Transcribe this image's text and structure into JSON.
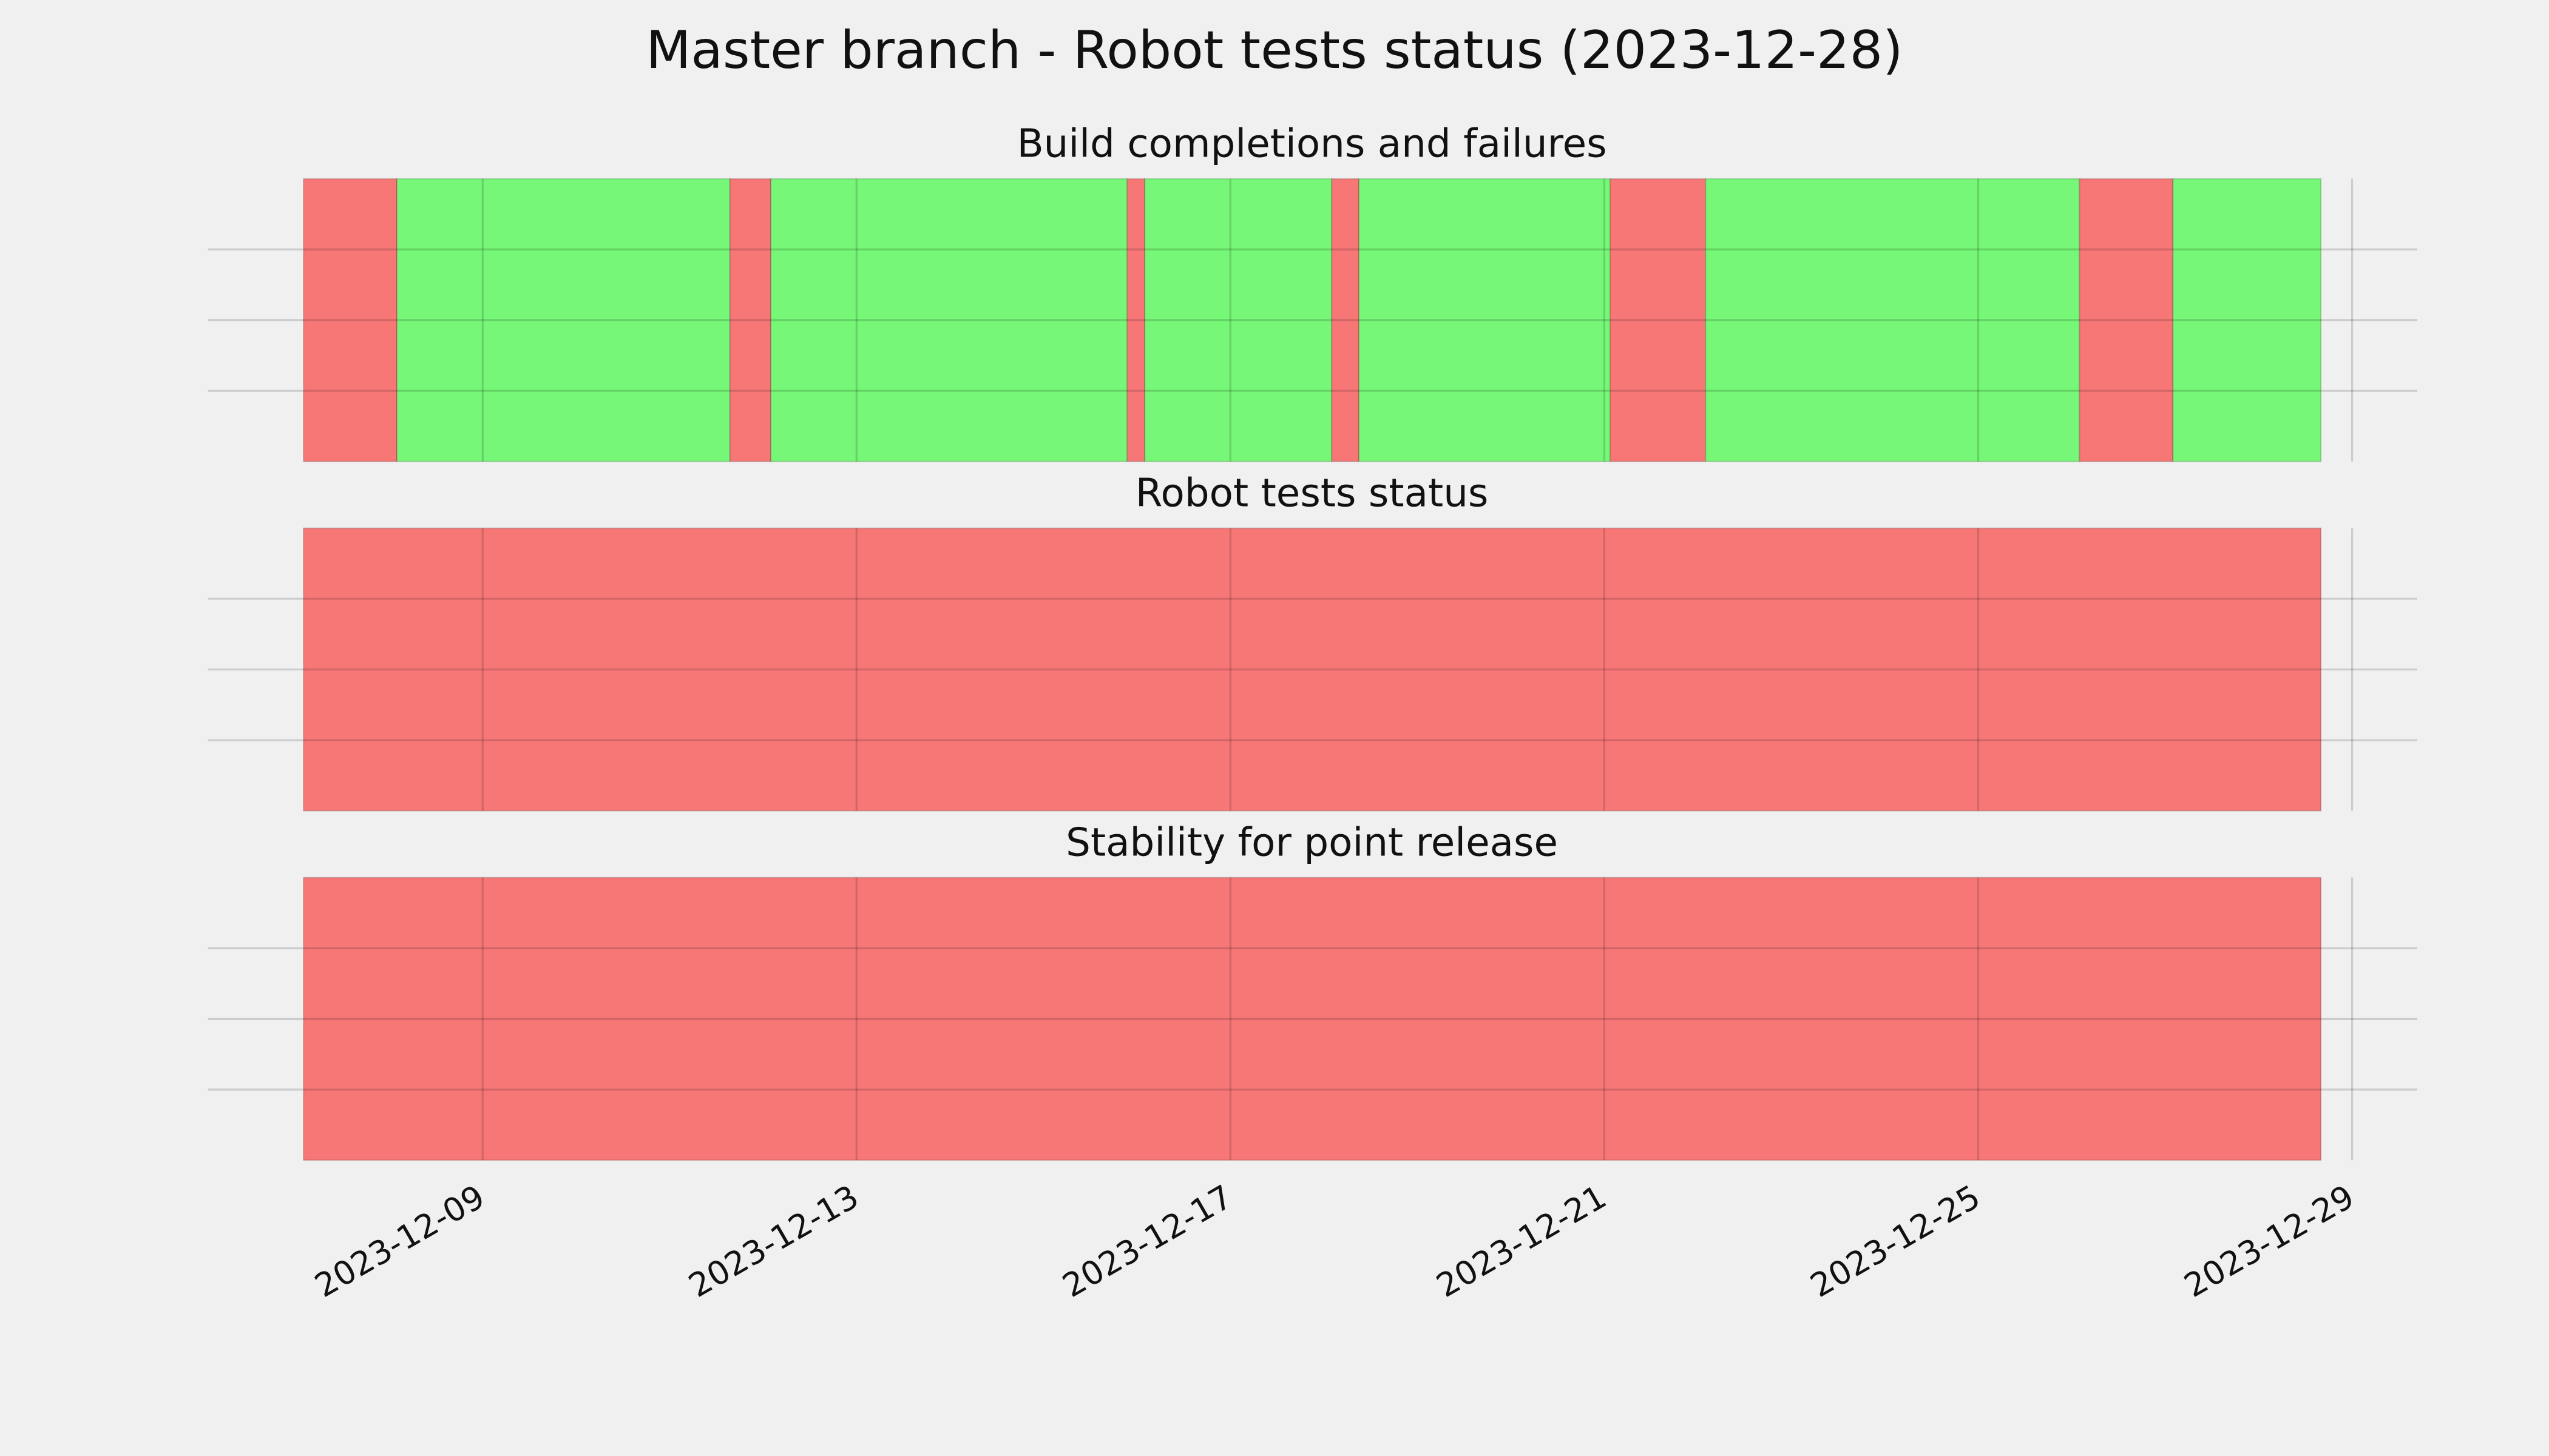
{
  "title": "Master branch - Robot tests status (2023-12-28)",
  "chart_data": [
    {
      "type": "timeline",
      "title": "Build completions and failures",
      "xlim": [
        "2023-12-06 01:30",
        "2023-12-29 16:45"
      ],
      "xticks": [
        "2023-12-09",
        "2023-12-13",
        "2023-12-17",
        "2023-12-21",
        "2023-12-25",
        "2023-12-29"
      ],
      "ylim": [
        0,
        1
      ],
      "yticks": [
        0.25,
        0.5,
        0.75
      ],
      "grid": true,
      "spans": [
        {
          "start": "2023-12-07 02:00",
          "end": "2023-12-08 02:00",
          "color": "#f77777"
        },
        {
          "start": "2023-12-08 02:00",
          "end": "2023-12-11 15:30",
          "color": "#77f777"
        },
        {
          "start": "2023-12-11 15:30",
          "end": "2023-12-12 02:00",
          "color": "#f77777"
        },
        {
          "start": "2023-12-12 02:00",
          "end": "2023-12-15 21:30",
          "color": "#77f777"
        },
        {
          "start": "2023-12-15 21:30",
          "end": "2023-12-16 02:00",
          "color": "#f77777"
        },
        {
          "start": "2023-12-16 02:00",
          "end": "2023-12-18 02:00",
          "color": "#77f777"
        },
        {
          "start": "2023-12-18 02:00",
          "end": "2023-12-18 09:00",
          "color": "#f77777"
        },
        {
          "start": "2023-12-18 09:00",
          "end": "2023-12-21 01:30",
          "color": "#77f777"
        },
        {
          "start": "2023-12-21 01:30",
          "end": "2023-12-22 02:00",
          "color": "#f77777"
        },
        {
          "start": "2023-12-22 02:00",
          "end": "2023-12-26 02:00",
          "color": "#77f777"
        },
        {
          "start": "2023-12-26 02:00",
          "end": "2023-12-27 02:00",
          "color": "#f77777"
        },
        {
          "start": "2023-12-27 02:00",
          "end": "2023-12-28 16:00",
          "color": "#77f777"
        }
      ]
    },
    {
      "type": "timeline",
      "title": "Robot tests status",
      "xlim": [
        "2023-12-06 01:30",
        "2023-12-29 16:45"
      ],
      "xticks": [
        "2023-12-09",
        "2023-12-13",
        "2023-12-17",
        "2023-12-21",
        "2023-12-25",
        "2023-12-29"
      ],
      "ylim": [
        0,
        1
      ],
      "yticks": [
        0.25,
        0.5,
        0.75
      ],
      "grid": true,
      "spans": [
        {
          "start": "2023-12-07 02:00",
          "end": "2023-12-28 16:00",
          "color": "#f77777"
        }
      ]
    },
    {
      "type": "timeline",
      "title": "Stability for point release",
      "xlim": [
        "2023-12-06 01:30",
        "2023-12-29 16:45"
      ],
      "xticks": [
        "2023-12-09",
        "2023-12-13",
        "2023-12-17",
        "2023-12-21",
        "2023-12-25",
        "2023-12-29"
      ],
      "ylim": [
        0,
        1
      ],
      "yticks": [
        0.25,
        0.5,
        0.75
      ],
      "grid": true,
      "spans": [
        {
          "start": "2023-12-07 02:00",
          "end": "2023-12-28 16:00",
          "color": "#f77777"
        }
      ]
    }
  ]
}
